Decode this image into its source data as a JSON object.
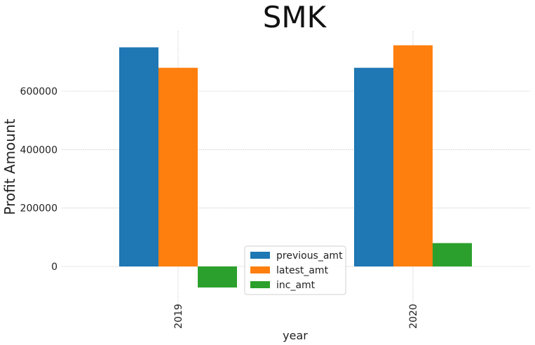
{
  "chart_data": {
    "type": "bar",
    "title": "SMK",
    "xlabel": "year",
    "ylabel": "Profit Amount",
    "categories": [
      "2019",
      "2020"
    ],
    "series": [
      {
        "name": "previous_amt",
        "values": [
          750000,
          680000
        ],
        "color": "#1f77b4"
      },
      {
        "name": "latest_amt",
        "values": [
          680000,
          757000
        ],
        "color": "#ff7f0e"
      },
      {
        "name": "inc_amt",
        "values": [
          -72000,
          80000
        ],
        "color": "#2ca02c"
      }
    ],
    "yticks": [
      0,
      200000,
      400000,
      600000
    ],
    "ytick_labels": [
      "0",
      "200000",
      "400000",
      "600000"
    ],
    "ylim": [
      -110000,
      800000
    ],
    "grid": true,
    "legend_position": "bottom-center"
  }
}
